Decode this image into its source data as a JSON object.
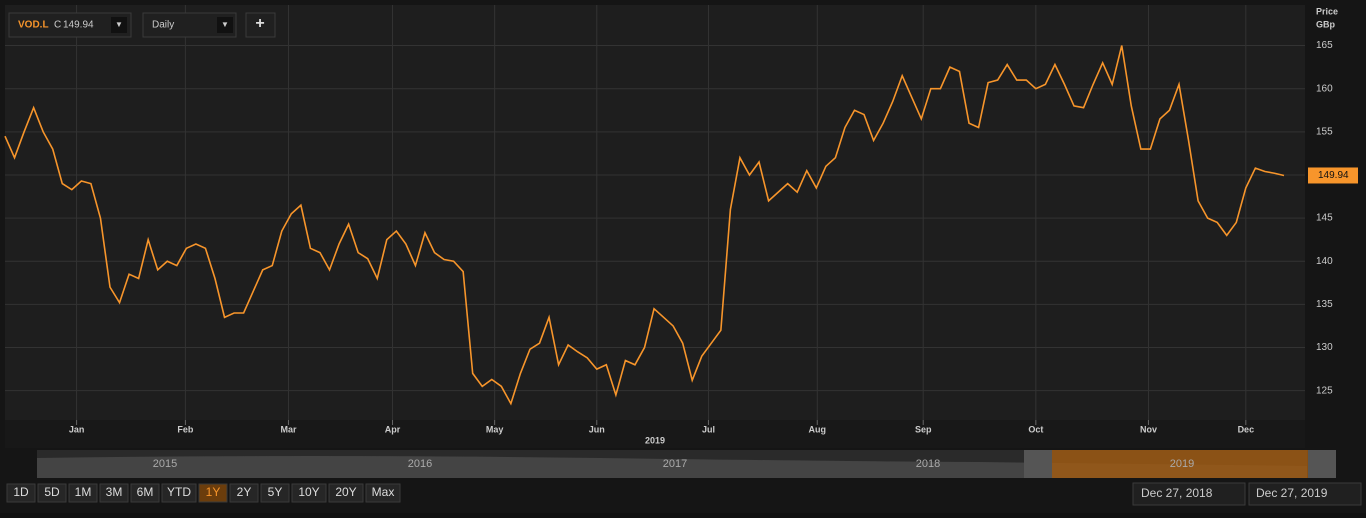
{
  "chart_data": {
    "type": "line",
    "series": [
      {
        "name": "VOD.L",
        "color": "#f7952b",
        "values": [
          154.5,
          152,
          155,
          157.8,
          155,
          153,
          149,
          148.3,
          149.3,
          149,
          145,
          137,
          135.2,
          138.5,
          138,
          142.5,
          139,
          140,
          139.5,
          141.5,
          142,
          141.5,
          138,
          133.5,
          134,
          134,
          136.5,
          139,
          139.5,
          143.5,
          145.5,
          146.5,
          141.5,
          141,
          139,
          142,
          144.3,
          141,
          140.3,
          138,
          142.5,
          143.5,
          142,
          139.5,
          143.3,
          141,
          140.2,
          140,
          138.8,
          127,
          125.5,
          126.3,
          125.5,
          123.5,
          127,
          129.8,
          130.5,
          133.5,
          128,
          130.3,
          129.5,
          128.8,
          127.5,
          128,
          124.5,
          128.5,
          128,
          130,
          134.5,
          133.5,
          132.5,
          130.5,
          126.2,
          129,
          130.5,
          132,
          146,
          152,
          150,
          151.5,
          147,
          148,
          149,
          148,
          150.5,
          148.5,
          151,
          152,
          155.5,
          157.5,
          157,
          154,
          156,
          158.5,
          161.5,
          159,
          156.5,
          160,
          160,
          162.5,
          162,
          156,
          155.5,
          160.7,
          161,
          162.8,
          161,
          161,
          160,
          160.5,
          162.8,
          160.5,
          158,
          157.8,
          160.5,
          163,
          160.5,
          165,
          158,
          153,
          153,
          156.5,
          157.5,
          160.5,
          154,
          147,
          145,
          144.5,
          143,
          144.5,
          148.5,
          150.8,
          150.4,
          150.2,
          149.94
        ]
      }
    ],
    "xlim": [
      0,
      134
    ],
    "xticks": [
      {
        "value": 7.5,
        "label": "Jan"
      },
      {
        "value": 18.9,
        "label": "Feb"
      },
      {
        "value": 29.7,
        "label": "Mar"
      },
      {
        "value": 40.6,
        "label": "Apr"
      },
      {
        "value": 51.3,
        "label": "May"
      },
      {
        "value": 62,
        "label": "Jun"
      },
      {
        "value": 73.7,
        "label": "Jul"
      },
      {
        "value": 85.1,
        "label": "Aug"
      },
      {
        "value": 96.2,
        "label": "Sep"
      },
      {
        "value": 108,
        "label": "Oct"
      },
      {
        "value": 119.8,
        "label": "Nov"
      },
      {
        "value": 130,
        "label": "Dec"
      }
    ],
    "x_year_label": "2019",
    "ylim": [
      121.6,
      169.7
    ],
    "yticks": [
      125,
      130,
      135,
      140,
      145,
      150,
      155,
      160,
      165
    ],
    "y_label": [
      "Price",
      "GBp"
    ],
    "grid": true
  },
  "ui": {
    "symbol": "VOD.L",
    "close_prefix": "C",
    "interval": "Daily",
    "add": "+",
    "navigator_years": [
      "2015",
      "2016",
      "2017",
      "2018",
      "2019"
    ],
    "ranges": [
      "1D",
      "5D",
      "1M",
      "3M",
      "6M",
      "YTD",
      "1Y",
      "2Y",
      "5Y",
      "10Y",
      "20Y",
      "Max"
    ],
    "active_range": "1Y",
    "start_date": "Dec 27, 2018",
    "end_date": "Dec 27, 2019"
  }
}
